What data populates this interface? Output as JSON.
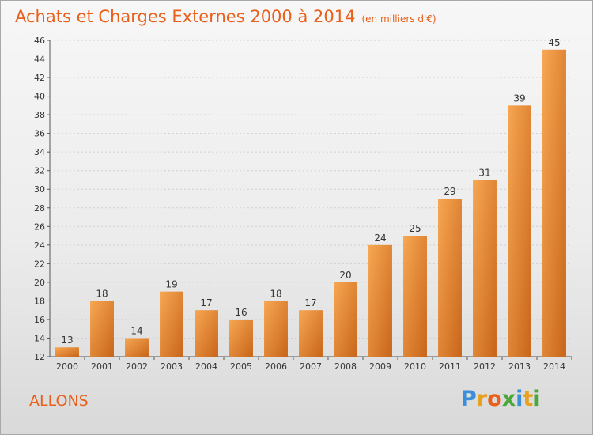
{
  "chart_data": {
    "type": "bar",
    "title": "Achats et Charges Externes 2000 à 2014",
    "subtitle": "(en milliers d'€)",
    "xlabel": "",
    "ylabel": "",
    "categories": [
      "2000",
      "2001",
      "2002",
      "2003",
      "2004",
      "2005",
      "2006",
      "2007",
      "2008",
      "2009",
      "2010",
      "2011",
      "2012",
      "2013",
      "2014"
    ],
    "values": [
      13,
      18,
      14,
      19,
      17,
      16,
      18,
      17,
      20,
      24,
      25,
      29,
      31,
      39,
      45
    ],
    "ylim": [
      12,
      46
    ],
    "yticks": [
      12,
      14,
      16,
      18,
      20,
      22,
      24,
      26,
      28,
      30,
      32,
      34,
      36,
      38,
      40,
      42,
      44,
      46
    ],
    "grid": true,
    "legend": "none",
    "bar_color": "#f08a30"
  },
  "commune": "ALLONS",
  "brand": {
    "letters": [
      "P",
      "r",
      "o",
      "x",
      "i",
      "t",
      "i"
    ],
    "colors": [
      "#3a8fd8",
      "#e8a020",
      "#e8601c",
      "#4aa83a",
      "#3a8fd8",
      "#e8a020",
      "#4aa83a"
    ]
  }
}
